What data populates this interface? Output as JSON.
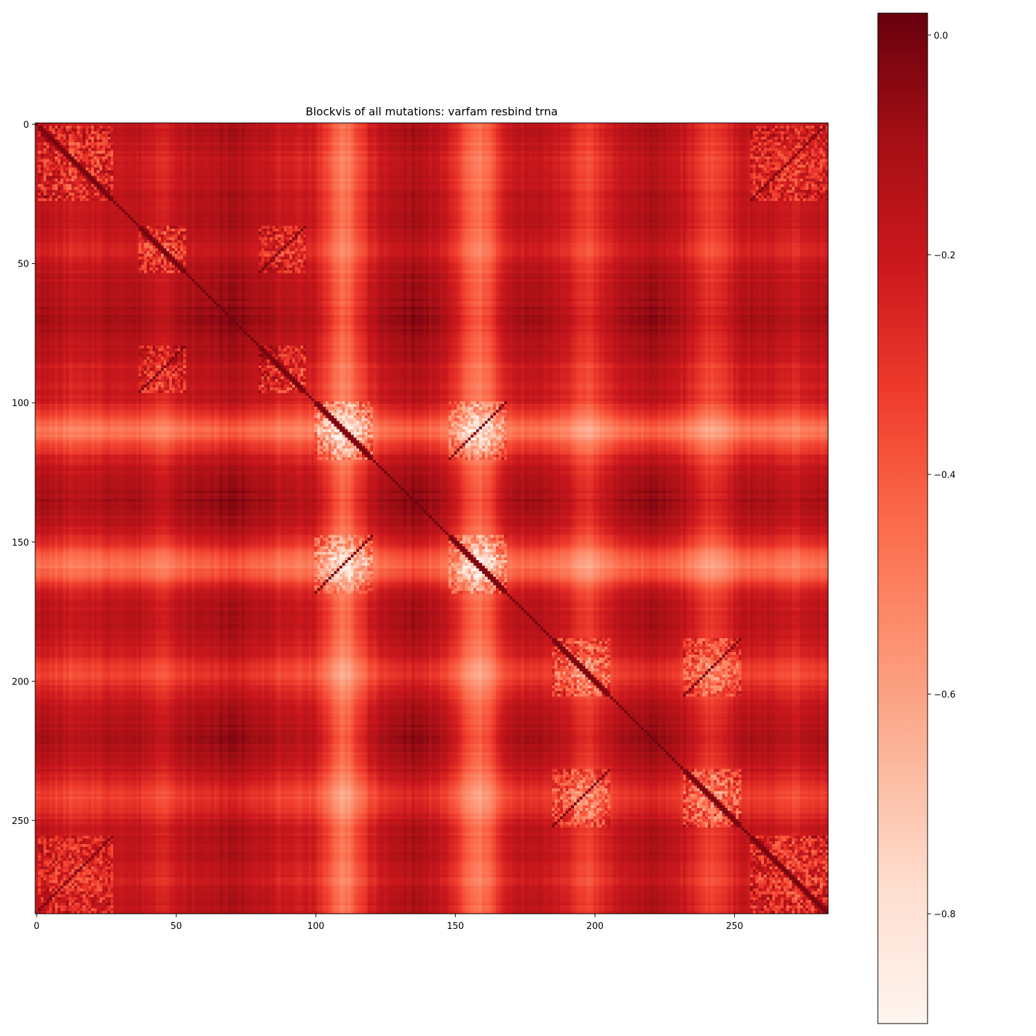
{
  "chart_data": {
    "type": "heatmap",
    "title": "Blockvis of all mutations: varfam resbind trna",
    "xlabel": "",
    "ylabel": "",
    "grid": false,
    "n": 284,
    "xlim": [
      -0.5,
      283.5
    ],
    "ylim": [
      283.5,
      -0.5
    ],
    "x_ticks": [
      0,
      50,
      100,
      150,
      200,
      250
    ],
    "y_ticks": [
      0,
      50,
      100,
      150,
      200,
      250
    ],
    "colormap": "Reds_r",
    "color_range": [
      -0.9,
      0.02
    ],
    "colorbar_ticks": [
      0.0,
      -0.2,
      -0.4,
      -0.6,
      -0.8
    ],
    "colorbar_tick_labels": [
      "0.0",
      "−0.2",
      "−0.4",
      "−0.6",
      "−0.8"
    ],
    "background_value": -0.15,
    "diagonal_value": 0.0,
    "light_bands": [
      {
        "center": 110,
        "halfwidth": 8,
        "depth": -0.3
      },
      {
        "center": 158,
        "halfwidth": 8,
        "depth": -0.3
      },
      {
        "center": 197,
        "halfwidth": 8,
        "depth": -0.16
      },
      {
        "center": 242,
        "halfwidth": 8,
        "depth": -0.16
      },
      {
        "center": 45,
        "halfwidth": 6,
        "depth": -0.06
      },
      {
        "center": 90,
        "halfwidth": 6,
        "depth": -0.06
      },
      {
        "center": 15,
        "halfwidth": 8,
        "depth": -0.06
      },
      {
        "center": 270,
        "halfwidth": 8,
        "depth": -0.06
      }
    ],
    "dark_bands": [
      {
        "center": 70,
        "halfwidth": 12,
        "depth": 0.05
      },
      {
        "center": 135,
        "halfwidth": 6,
        "depth": 0.06
      },
      {
        "center": 220,
        "halfwidth": 8,
        "depth": 0.04
      }
    ],
    "diagonal_blocks": [
      {
        "start": 1,
        "end": 27
      },
      {
        "start": 37,
        "end": 53
      },
      {
        "start": 80,
        "end": 96
      },
      {
        "start": 100,
        "end": 120
      },
      {
        "start": 148,
        "end": 168
      },
      {
        "start": 185,
        "end": 205
      },
      {
        "start": 232,
        "end": 252
      },
      {
        "start": 256,
        "end": 283
      }
    ],
    "antidiagonal_pairs": [
      {
        "a": [
          100,
          120
        ],
        "b": [
          148,
          168
        ]
      },
      {
        "a": [
          185,
          205
        ],
        "b": [
          232,
          252
        ]
      },
      {
        "a": [
          37,
          53
        ],
        "b": [
          80,
          96
        ]
      },
      {
        "a": [
          1,
          27
        ],
        "b": [
          256,
          283
        ]
      }
    ]
  }
}
